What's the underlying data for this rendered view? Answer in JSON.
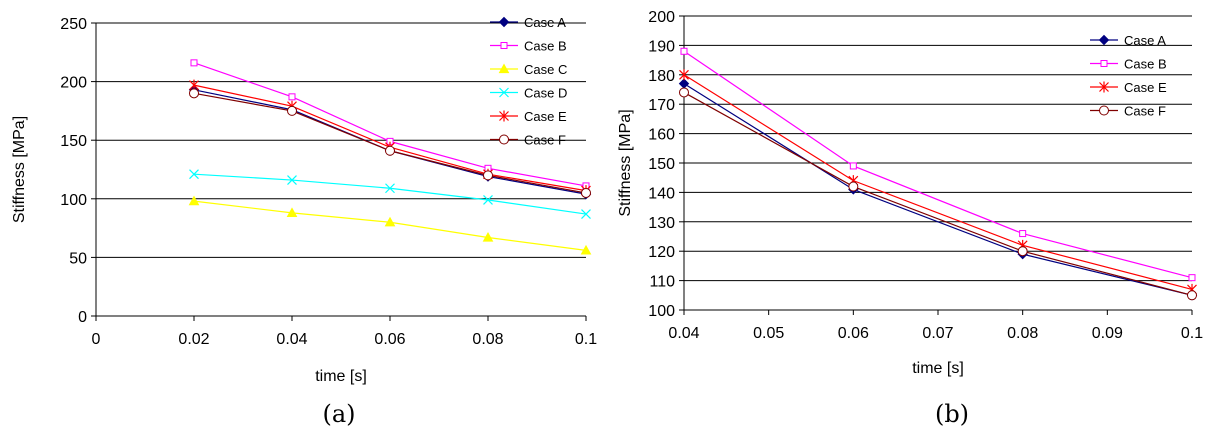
{
  "chart_data": [
    {
      "type": "line",
      "caption": "(a)",
      "xlabel": "time [s]",
      "ylabel": "Stiffness [MPa]",
      "xlim": [
        0,
        0.1
      ],
      "ylim": [
        0,
        250
      ],
      "xticks": [
        0,
        0.02,
        0.04,
        0.06,
        0.08,
        0.1
      ],
      "xtick_labels": [
        "0",
        "0.02",
        "0.04",
        "0.06",
        "0.08",
        "0.1"
      ],
      "yticks": [
        0,
        50,
        100,
        150,
        200,
        250
      ],
      "ytick_labels": [
        "0",
        "50",
        "100",
        "150",
        "200",
        "250"
      ],
      "grid": "horizontal",
      "legend": "top-right",
      "x": [
        0.02,
        0.04,
        0.06,
        0.08,
        0.1
      ],
      "series": [
        {
          "name": "Case A",
          "color": "#000080",
          "marker": "diamond",
          "values": [
            193,
            176,
            141,
            119,
            104
          ]
        },
        {
          "name": "Case B",
          "color": "#ff00ff",
          "marker": "square-open",
          "values": [
            216,
            187,
            149,
            126,
            111
          ]
        },
        {
          "name": "Case C",
          "color": "#ffff00",
          "marker": "triangle",
          "values": [
            98,
            88,
            80,
            67,
            56
          ]
        },
        {
          "name": "Case D",
          "color": "#00ffff",
          "marker": "x",
          "values": [
            121,
            116,
            109,
            99,
            87
          ]
        },
        {
          "name": "Case E",
          "color": "#ff0000",
          "marker": "star",
          "values": [
            197,
            179,
            144,
            121,
            107
          ]
        },
        {
          "name": "Case F",
          "color": "#800000",
          "marker": "circle-open",
          "values": [
            190,
            175,
            141,
            120,
            105
          ]
        }
      ]
    },
    {
      "type": "line",
      "caption": "(b)",
      "xlabel": "time [s]",
      "ylabel": "Stiffness [MPa]",
      "xlim": [
        0.04,
        0.1
      ],
      "ylim": [
        100,
        200
      ],
      "xticks": [
        0.04,
        0.05,
        0.06,
        0.07,
        0.08,
        0.09,
        0.1
      ],
      "xtick_labels": [
        "0.04",
        "0.05",
        "0.06",
        "0.07",
        "0.08",
        "0.09",
        "0.1"
      ],
      "yticks": [
        100,
        110,
        120,
        130,
        140,
        150,
        160,
        170,
        180,
        190,
        200
      ],
      "ytick_labels": [
        "100",
        "110",
        "120",
        "130",
        "140",
        "150",
        "160",
        "170",
        "180",
        "190",
        "200"
      ],
      "grid": "horizontal",
      "legend": "top-right",
      "x": [
        0.04,
        0.06,
        0.08,
        0.1
      ],
      "series": [
        {
          "name": "Case A",
          "color": "#000080",
          "marker": "diamond",
          "values": [
            177,
            141,
            119,
            105
          ]
        },
        {
          "name": "Case B",
          "color": "#ff00ff",
          "marker": "square-open",
          "values": [
            188,
            149,
            126,
            111
          ]
        },
        {
          "name": "Case E",
          "color": "#ff0000",
          "marker": "star",
          "values": [
            180,
            144,
            122,
            107
          ]
        },
        {
          "name": "Case F",
          "color": "#800000",
          "marker": "circle-open",
          "values": [
            174,
            142,
            120,
            105
          ]
        }
      ]
    }
  ]
}
